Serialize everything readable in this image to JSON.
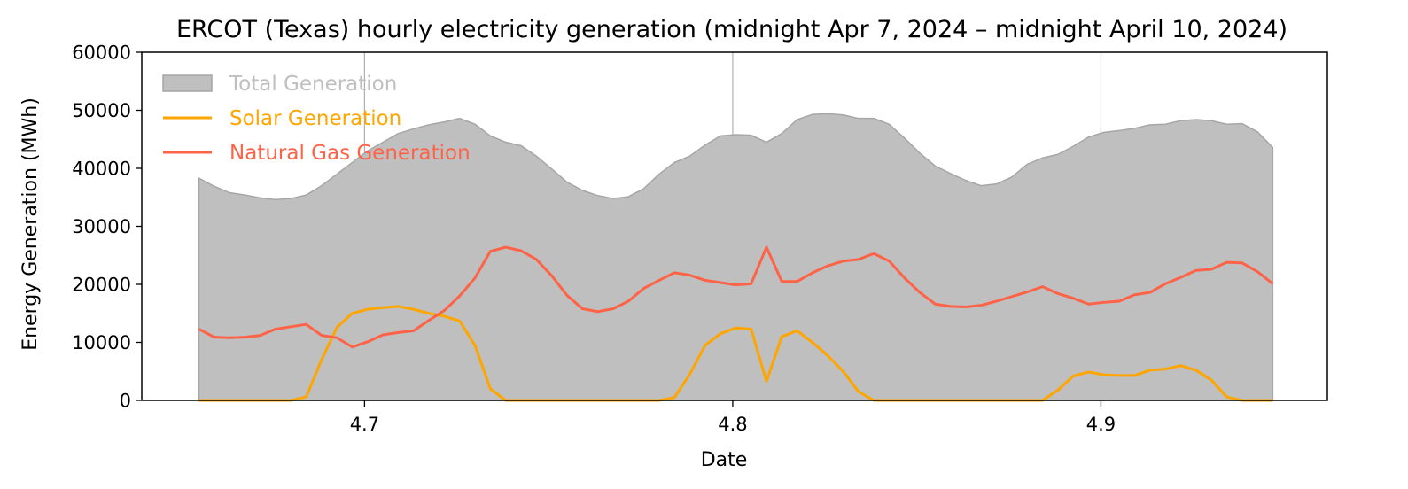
{
  "chart_data": {
    "type": "line",
    "title": "ERCOT (Texas) hourly electricity generation (midnight Apr 7, 2024 – midnight April 10, 2024)",
    "xlabel": "Date",
    "ylabel": "Energy Generation (MWh)",
    "xlim": [
      4.6395,
      4.9615
    ],
    "ylim": [
      0,
      60000
    ],
    "x_ticks": [
      4.7,
      4.8,
      4.9
    ],
    "x_tick_labels": [
      "4.7",
      "4.8",
      "4.9"
    ],
    "y_ticks": [
      0,
      10000,
      20000,
      30000,
      40000,
      50000,
      60000
    ],
    "y_tick_labels": [
      "0",
      "10000",
      "20000",
      "30000",
      "40000",
      "50000",
      "60000"
    ],
    "grid": "vertical at x ticks",
    "legend_position": "upper-left",
    "x": [
      4.655,
      4.659167,
      4.663333,
      4.6675,
      4.671667,
      4.675833,
      4.68,
      4.684167,
      4.688333,
      4.6925,
      4.696667,
      4.700833,
      4.705,
      4.709167,
      4.713333,
      4.7175,
      4.721667,
      4.725833,
      4.73,
      4.734167,
      4.738333,
      4.7425,
      4.746667,
      4.750833,
      4.755,
      4.759167,
      4.763333,
      4.7675,
      4.771667,
      4.775833,
      4.78,
      4.784167,
      4.788333,
      4.7925,
      4.796667,
      4.800833,
      4.805,
      4.809167,
      4.813333,
      4.8175,
      4.821667,
      4.825833,
      4.83,
      4.834167,
      4.838333,
      4.8425,
      4.846667,
      4.850833,
      4.855,
      4.859167,
      4.863333,
      4.8675,
      4.871667,
      4.875833,
      4.88,
      4.884167,
      4.888333,
      4.8925,
      4.896667,
      4.900833,
      4.905,
      4.909167,
      4.913333,
      4.9175,
      4.921667,
      4.925833,
      4.93,
      4.934167,
      4.938333,
      4.9425,
      4.946667
    ],
    "series": [
      {
        "name": "Total Generation",
        "kind": "area",
        "color": "#bfbfbf",
        "edge_color": "#a6a6a6",
        "values": [
          38300,
          36900,
          35800,
          35400,
          34900,
          34600,
          34800,
          35400,
          37000,
          39000,
          41000,
          43000,
          44500,
          46000,
          46800,
          47500,
          48000,
          48600,
          47600,
          45600,
          44500,
          43900,
          42100,
          39900,
          37600,
          36200,
          35300,
          34800,
          35100,
          36500,
          39000,
          41000,
          42100,
          44000,
          45600,
          45800,
          45700,
          44500,
          46000,
          48400,
          49300,
          49400,
          49200,
          48600,
          48600,
          47600,
          45200,
          42600,
          40400,
          39100,
          37900,
          37000,
          37300,
          38500,
          40700,
          41800,
          42400,
          43800,
          45400,
          46200,
          46500,
          46900,
          47500,
          47600,
          48200,
          48400,
          48200,
          47600,
          47700,
          46300,
          43600
        ]
      },
      {
        "name": "Solar Generation",
        "kind": "line",
        "color": "#ffa500",
        "values": [
          0,
          0,
          0,
          0,
          0,
          0,
          0,
          600,
          7000,
          12600,
          15000,
          15700,
          16000,
          16200,
          15700,
          15000,
          14500,
          13700,
          9500,
          2000,
          0,
          0,
          0,
          0,
          0,
          0,
          0,
          0,
          0,
          0,
          0,
          500,
          4500,
          9500,
          11500,
          12500,
          12300,
          3300,
          11000,
          12000,
          10000,
          7700,
          5000,
          1500,
          0,
          0,
          0,
          0,
          0,
          0,
          0,
          0,
          0,
          0,
          0,
          0,
          1800,
          4200,
          4900,
          4400,
          4300,
          4300,
          5200,
          5400,
          6000,
          5200,
          3500,
          600,
          0,
          0,
          0
        ]
      },
      {
        "name": "Natural Gas Generation",
        "kind": "line",
        "color": "#ff6347",
        "values": [
          12300,
          10900,
          10800,
          10900,
          11200,
          12300,
          12700,
          13100,
          11200,
          10800,
          9200,
          10100,
          11300,
          11700,
          12000,
          13800,
          15500,
          18000,
          21100,
          25700,
          26400,
          25800,
          24300,
          21500,
          18100,
          15800,
          15300,
          15800,
          17100,
          19300,
          20700,
          22000,
          21600,
          20700,
          20300,
          19900,
          20100,
          26400,
          20500,
          20500,
          22000,
          23200,
          24000,
          24300,
          25300,
          24000,
          21100,
          18600,
          16600,
          16200,
          16100,
          16400,
          17100,
          17900,
          18700,
          19600,
          18400,
          17600,
          16600,
          16900,
          17100,
          18200,
          18600,
          20100,
          21200,
          22400,
          22600,
          23800,
          23700,
          22200,
          20100
        ]
      }
    ]
  }
}
